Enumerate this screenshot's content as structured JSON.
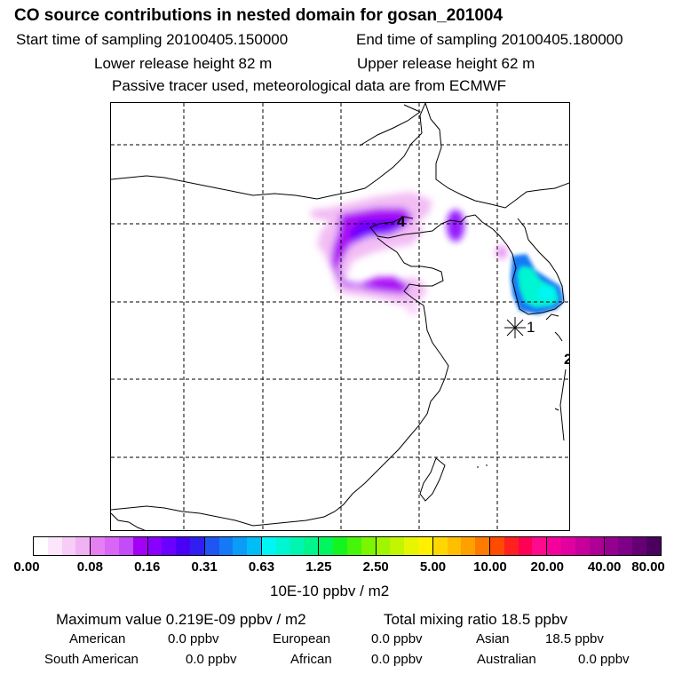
{
  "header": {
    "title": "CO  source contributions in nested domain for gosan_201004",
    "start_label": "Start time of sampling 20100405.150000",
    "end_label": "End time of sampling 20100405.180000",
    "lower_label": "Lower release height   82 m",
    "upper_label": "Upper release height   62 m",
    "tracer_label": "Passive tracer used, meteorological data are from ECMWF"
  },
  "chart_data": {
    "type": "heatmap",
    "title": "CO  source contributions in nested domain for gosan_201004",
    "colorbar_ticks": [
      "0.00",
      "0.08",
      "0.16",
      "0.31",
      "0.63",
      "1.25",
      "2.50",
      "5.00",
      "10.00",
      "20.00",
      "40.00",
      "80.00"
    ],
    "colorbar_units": "10E-10 ppbv / m2",
    "colors": [
      "#ffffff",
      "#fbe6fb",
      "#f7ccf7",
      "#f0b2f2",
      "#e57ff2",
      "#d966f5",
      "#c24cf7",
      "#a400f5",
      "#8a00ff",
      "#6a00ff",
      "#4a00f5",
      "#2f1ff0",
      "#1f55f0",
      "#1479f5",
      "#0a9cf7",
      "#00bdf7",
      "#00f5f5",
      "#00f5d2",
      "#00f5b0",
      "#00f58d",
      "#00f55e",
      "#14f51f",
      "#46f50a",
      "#7bf500",
      "#a0f500",
      "#c2f500",
      "#e6f500",
      "#fff000",
      "#ffd700",
      "#ffbe00",
      "#ffa000",
      "#ff7a00",
      "#ff4b00",
      "#ff2020",
      "#ff0055",
      "#ff0a8c",
      "#f5009b",
      "#e100a0",
      "#c8009b",
      "#af0096",
      "#960091",
      "#7d0087",
      "#640073",
      "#4b005f"
    ],
    "receptor_markers": [
      "1",
      "2",
      "4"
    ],
    "maximum_label": "Maximum value  0.219E-09 ppbv / m2",
    "total_label": "Total mixing ratio       18.5 ppbv",
    "regions": [
      {
        "name": "American",
        "value": "0.0 ppbv"
      },
      {
        "name": "European",
        "value": "0.0 ppbv"
      },
      {
        "name": "Asian",
        "value": "18.5 ppbv"
      },
      {
        "name": "South American",
        "value": "0.0 ppbv"
      },
      {
        "name": "African",
        "value": "0.0 ppbv"
      },
      {
        "name": "Australian",
        "value": "0.0 ppbv"
      }
    ]
  }
}
